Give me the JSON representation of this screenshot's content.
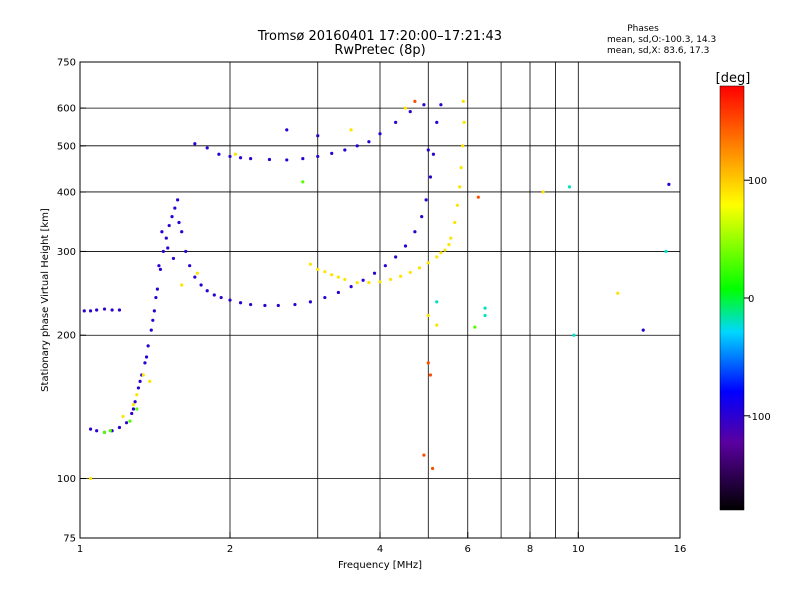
{
  "header": {
    "title_line1": "Tromsø 20160401 17:20:00–17:21:43",
    "title_line2": "RwPretec (8p)",
    "phases_label": "Phases",
    "phases_o": "mean, sd,O:-100.3, 14.3",
    "phases_x": "mean, sd,X:  83.6, 17.3"
  },
  "chart_data": {
    "type": "scatter",
    "xlabel": "Frequency [MHz]",
    "ylabel": "Stationary phase Virtual Height [km]",
    "x_scale": "log",
    "y_scale": "log",
    "xlim": [
      1,
      16
    ],
    "ylim": [
      75,
      750
    ],
    "x_ticks": [
      {
        "value": 1,
        "label": "1"
      },
      {
        "value": 2,
        "label": "2"
      },
      {
        "value": 4,
        "label": "4"
      },
      {
        "value": 6,
        "label": "6"
      },
      {
        "value": 8,
        "label": "8"
      },
      {
        "value": 10,
        "label": "10"
      },
      {
        "value": 16,
        "label": "16"
      }
    ],
    "y_ticks": [
      {
        "value": 75,
        "label": "75"
      },
      {
        "value": 100,
        "label": "100"
      },
      {
        "value": 200,
        "label": "200"
      },
      {
        "value": 300,
        "label": "300"
      },
      {
        "value": 400,
        "label": "400"
      },
      {
        "value": 500,
        "label": "500"
      },
      {
        "value": 600,
        "label": "600"
      },
      {
        "value": 750,
        "label": "750"
      }
    ],
    "x_grid": [
      2,
      3,
      4,
      5,
      6,
      7,
      8,
      9,
      10
    ],
    "y_grid": [
      100,
      200,
      300,
      400,
      500,
      600,
      750
    ],
    "grid": true,
    "colorbar": {
      "label": "[deg]",
      "range": [
        -180,
        180
      ],
      "ticks": [
        {
          "value": 100,
          "label": "100"
        },
        {
          "value": 0,
          "label": "0"
        },
        {
          "value": -100,
          "label": "-100"
        }
      ]
    },
    "series": [
      {
        "phase": -100,
        "points": [
          [
            1.02,
            225
          ],
          [
            1.05,
            225
          ],
          [
            1.08,
            226
          ],
          [
            1.12,
            227
          ],
          [
            1.16,
            226
          ],
          [
            1.2,
            226
          ],
          [
            1.05,
            127
          ],
          [
            1.08,
            126
          ],
          [
            1.12,
            125
          ],
          [
            1.16,
            126
          ],
          [
            1.2,
            128
          ],
          [
            1.24,
            131
          ],
          [
            1.27,
            137
          ],
          [
            1.29,
            145
          ],
          [
            1.31,
            155
          ],
          [
            1.33,
            165
          ],
          [
            1.35,
            175
          ],
          [
            1.37,
            190
          ],
          [
            1.39,
            205
          ],
          [
            1.41,
            225
          ],
          [
            1.43,
            250
          ],
          [
            1.45,
            275
          ],
          [
            1.47,
            300
          ],
          [
            1.49,
            320
          ],
          [
            1.51,
            340
          ],
          [
            1.53,
            355
          ],
          [
            1.55,
            370
          ],
          [
            1.57,
            385
          ],
          [
            1.6,
            330
          ],
          [
            1.63,
            300
          ],
          [
            1.66,
            280
          ],
          [
            1.7,
            265
          ],
          [
            1.75,
            255
          ],
          [
            1.8,
            248
          ],
          [
            1.86,
            243
          ],
          [
            1.92,
            240
          ],
          [
            2.0,
            237
          ],
          [
            2.1,
            234
          ],
          [
            2.2,
            232
          ],
          [
            2.35,
            231
          ],
          [
            2.5,
            231
          ],
          [
            2.7,
            232
          ],
          [
            2.9,
            235
          ],
          [
            3.1,
            240
          ],
          [
            3.3,
            246
          ],
          [
            3.5,
            253
          ],
          [
            3.7,
            261
          ],
          [
            3.9,
            270
          ],
          [
            4.1,
            280
          ],
          [
            4.3,
            292
          ],
          [
            4.5,
            308
          ],
          [
            4.7,
            330
          ],
          [
            4.85,
            355
          ],
          [
            4.95,
            385
          ],
          [
            5.05,
            430
          ],
          [
            5.12,
            480
          ],
          [
            5.2,
            560
          ],
          [
            5.3,
            610
          ],
          [
            5.0,
            490
          ],
          [
            1.7,
            505
          ],
          [
            1.8,
            495
          ],
          [
            1.9,
            480
          ],
          [
            2.0,
            475
          ],
          [
            2.1,
            472
          ],
          [
            2.2,
            470
          ],
          [
            2.4,
            468
          ],
          [
            2.6,
            467
          ],
          [
            2.8,
            470
          ],
          [
            3.0,
            475
          ],
          [
            3.2,
            482
          ],
          [
            3.4,
            490
          ],
          [
            3.6,
            500
          ],
          [
            3.8,
            510
          ],
          [
            4.0,
            530
          ],
          [
            4.3,
            560
          ],
          [
            4.6,
            590
          ],
          [
            4.9,
            610
          ],
          [
            1.46,
            330
          ],
          [
            1.5,
            305
          ],
          [
            1.54,
            290
          ],
          [
            1.58,
            345
          ],
          [
            1.44,
            280
          ],
          [
            1.42,
            240
          ],
          [
            1.4,
            215
          ],
          [
            1.36,
            180
          ],
          [
            1.32,
            160
          ],
          [
            1.28,
            140
          ],
          [
            2.6,
            540
          ],
          [
            3.0,
            525
          ],
          [
            13.5,
            205
          ],
          [
            15.2,
            415
          ]
        ]
      },
      {
        "phase": 90,
        "points": [
          [
            3.0,
            275
          ],
          [
            3.2,
            268
          ],
          [
            3.4,
            262
          ],
          [
            3.6,
            258
          ],
          [
            3.8,
            258
          ],
          [
            4.0,
            259
          ],
          [
            4.2,
            262
          ],
          [
            4.4,
            266
          ],
          [
            4.6,
            271
          ],
          [
            4.8,
            277
          ],
          [
            5.0,
            284
          ],
          [
            5.2,
            292
          ],
          [
            5.4,
            302
          ],
          [
            5.55,
            320
          ],
          [
            5.65,
            345
          ],
          [
            5.72,
            375
          ],
          [
            5.78,
            410
          ],
          [
            5.82,
            450
          ],
          [
            5.86,
            500
          ],
          [
            5.9,
            560
          ],
          [
            5.88,
            620
          ],
          [
            2.9,
            282
          ],
          [
            3.1,
            272
          ],
          [
            3.3,
            265
          ],
          [
            5.3,
            298
          ],
          [
            5.5,
            310
          ],
          [
            1.3,
            150
          ],
          [
            1.34,
            165
          ],
          [
            1.28,
            143
          ],
          [
            1.22,
            135
          ],
          [
            1.6,
            255
          ],
          [
            1.72,
            270
          ],
          [
            2.05,
            480
          ],
          [
            3.5,
            540
          ],
          [
            4.5,
            600
          ],
          [
            5.0,
            220
          ],
          [
            5.2,
            210
          ],
          [
            12.0,
            245
          ],
          [
            8.5,
            400
          ],
          [
            1.05,
            100
          ],
          [
            1.38,
            160
          ]
        ]
      },
      {
        "phase": 30,
        "points": [
          [
            1.12,
            125
          ],
          [
            1.15,
            126
          ],
          [
            1.26,
            132
          ],
          [
            1.3,
            140
          ],
          [
            2.8,
            420
          ],
          [
            6.2,
            208
          ]
        ]
      },
      {
        "phase": -20,
        "points": [
          [
            6.5,
            228
          ],
          [
            6.5,
            220
          ],
          [
            9.8,
            200
          ],
          [
            9.6,
            410
          ],
          [
            15.0,
            300
          ],
          [
            5.2,
            235
          ]
        ]
      },
      {
        "phase": 150,
        "points": [
          [
            4.7,
            620
          ],
          [
            5.0,
            175
          ],
          [
            5.05,
            165
          ],
          [
            6.3,
            390
          ],
          [
            5.1,
            105
          ],
          [
            4.9,
            112
          ]
        ]
      }
    ]
  }
}
